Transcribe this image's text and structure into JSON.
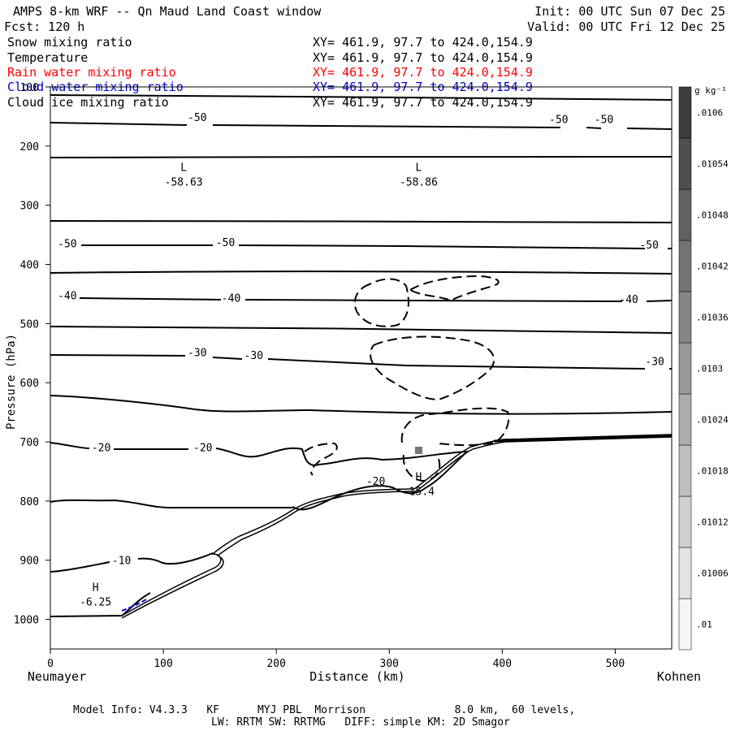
{
  "header": {
    "title": "AMPS 8-km WRF -- Qn Maud Land Coast window",
    "forecast": "Fcst:  120 h",
    "init": "Init: 00 UTC Sun 07 Dec 25",
    "valid": "Valid: 00 UTC Fri 12 Dec 25"
  },
  "variables": [
    {
      "name": "Snow mixing ratio",
      "xy": "XY= 461.9, 97.7 to 424.0,154.9",
      "color": "#000000"
    },
    {
      "name": "Temperature",
      "xy": "XY= 461.9, 97.7 to 424.0,154.9",
      "color": "#000000"
    },
    {
      "name": "Rain water mixing ratio",
      "xy": "XY= 461.9, 97.7 to 424.0,154.9",
      "color": "#ff0000"
    },
    {
      "name": "Cloud water mixing ratio",
      "xy": "XY= 461.9, 97.7 to 424.0,154.9",
      "color": "#0000cc"
    },
    {
      "name": "Cloud ice mixing ratio",
      "xy": "XY= 461.9, 97.7 to 424.0,154.9",
      "color": "#000000"
    }
  ],
  "footer": {
    "line1": "Model Info: V4.3.3   KF      MYJ PBL  Morrison              8.0 km,  60 levels,",
    "line2": "LW: RRTM SW: RRTMG   DIFF: simple KM: 2D Smagor"
  },
  "chart_data": {
    "type": "cross-section contour",
    "xlabel": "Distance (km)",
    "ylabel": "Pressure (hPa)",
    "xlim": [
      0,
      550
    ],
    "ylim": [
      1050,
      100
    ],
    "x_ticks": [
      0,
      100,
      200,
      300,
      400,
      500
    ],
    "y_ticks": [
      100,
      200,
      300,
      400,
      500,
      600,
      700,
      800,
      900,
      1000
    ],
    "x_end_labels": {
      "left": "Neumayer",
      "right": "Kohnen"
    },
    "colorbar": {
      "unit": "g kg⁻¹",
      "levels": [
        ".01",
        ".01006",
        ".01012",
        ".01018",
        ".01024",
        ".0103",
        ".01036",
        ".01042",
        ".01048",
        ".01054",
        ".0106"
      ]
    },
    "isotherm_labels": [
      {
        "text": "-50",
        "x": 130,
        "p": 151
      },
      {
        "text": "-50",
        "x": 450,
        "p": 154
      },
      {
        "text": "-50",
        "x": 490,
        "p": 154
      },
      {
        "text": "-50",
        "x": 15,
        "p": 364
      },
      {
        "text": "-50",
        "x": 155,
        "p": 362
      },
      {
        "text": "-50",
        "x": 530,
        "p": 366
      },
      {
        "text": "-40",
        "x": 15,
        "p": 452
      },
      {
        "text": "-40",
        "x": 160,
        "p": 456
      },
      {
        "text": "-40",
        "x": 512,
        "p": 458
      },
      {
        "text": "-30",
        "x": 130,
        "p": 548
      },
      {
        "text": "-30",
        "x": 180,
        "p": 553
      },
      {
        "text": "-30",
        "x": 535,
        "p": 563
      },
      {
        "text": "-20",
        "x": 45,
        "p": 709
      },
      {
        "text": "-20",
        "x": 135,
        "p": 709
      },
      {
        "text": "-20",
        "x": 288,
        "p": 766
      },
      {
        "text": "-10",
        "x": 63,
        "p": 900
      }
    ],
    "extrema": [
      {
        "kind": "L",
        "value": "-58.63",
        "x": 118,
        "p": 260
      },
      {
        "kind": "L",
        "value": "-58.86",
        "x": 326,
        "p": 260
      },
      {
        "kind": "H",
        "value": "-15.4",
        "x": 326,
        "p": 783
      },
      {
        "kind": "H",
        "value": "-6.25",
        "x": 40,
        "p": 970
      }
    ]
  }
}
